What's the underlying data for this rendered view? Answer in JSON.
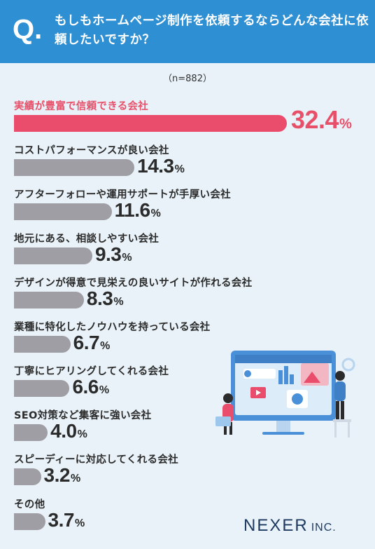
{
  "header": {
    "q_mark": "Q.",
    "title": "もしもホームページ制作を依頼するならどんな会社に依頼したいですか？"
  },
  "sample": "（n=882）",
  "logo": {
    "name": "NEXER",
    "suffix": "INC."
  },
  "colors": {
    "header": "#2f8fd3",
    "highlight": "#ea4c6c",
    "bar": "#9e9ea4",
    "background": "#e8f2f8"
  },
  "chart_data": {
    "type": "bar",
    "orientation": "horizontal",
    "categories": [
      "実績が豊富で信頼できる会社",
      "コストパフォーマンスが良い会社",
      "アフターフォローや運用サポートが手厚い会社",
      "地元にある、相談しやすい会社",
      "デザインが得意で見栄えの良いサイトが作れる会社",
      "業種に特化したノウハウを持っている会社",
      "丁寧にヒアリングしてくれる会社",
      "SEO対策など集客に強い会社",
      "スピーディーに対応してくれる会社",
      "その他"
    ],
    "values": [
      32.4,
      14.3,
      11.6,
      9.3,
      8.3,
      6.7,
      6.6,
      4.0,
      3.2,
      3.7
    ],
    "value_labels": [
      "32.4",
      "14.3",
      "11.6",
      "9.3",
      "8.3",
      "6.7",
      "6.6",
      "4.0",
      "3.2",
      "3.7"
    ],
    "unit": "%",
    "highlight_index": 0,
    "title": "",
    "xlabel": "",
    "ylabel": ""
  }
}
